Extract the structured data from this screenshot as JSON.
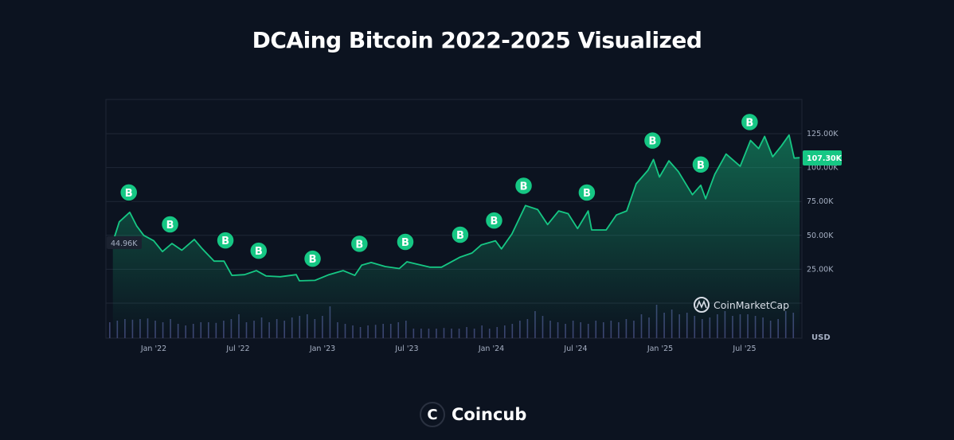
{
  "title": "DCAing Bitcoin 2022-2025 Visualized",
  "brand": {
    "logo_letter": "C",
    "name": "Coincub"
  },
  "watermark": "CoinMarketCap",
  "colors": {
    "background": "#0c1320",
    "line": "#16c784",
    "marker": "#16c784",
    "volume": "#3b4470",
    "grid": "#1f2736"
  },
  "chart_data": {
    "type": "area",
    "title": "DCAing Bitcoin 2022-2025 Visualized",
    "xlabel": "",
    "ylabel": "",
    "currency_label": "USD",
    "y_unit": "K",
    "ylim": [
      0,
      150
    ],
    "yticks": [
      25,
      50,
      75,
      100,
      125
    ],
    "ytick_labels": [
      "25.00K",
      "50.00K",
      "75.00K",
      "100.00K",
      "125.00K"
    ],
    "xticks": [
      "2022-01-01",
      "2022-07-01",
      "2023-01-01",
      "2023-07-01",
      "2024-01-01",
      "2024-07-01",
      "2025-01-01",
      "2025-07-01"
    ],
    "xtick_labels": [
      "Jan '22",
      "Jul '22",
      "Jan '23",
      "Jul '23",
      "Jan '24",
      "Jul '24",
      "Jan '25",
      "Jul '25"
    ],
    "grid": true,
    "start_label": "44.96K",
    "current_price_label": "107.30K",
    "current_price": 107.3,
    "series": [
      {
        "points": [
          [
            "2021-10-04",
            45
          ],
          [
            "2021-10-18",
            60
          ],
          [
            "2021-11-10",
            67
          ],
          [
            "2021-11-25",
            57
          ],
          [
            "2021-12-10",
            50
          ],
          [
            "2022-01-01",
            46
          ],
          [
            "2022-01-20",
            38
          ],
          [
            "2022-02-10",
            44
          ],
          [
            "2022-03-01",
            39
          ],
          [
            "2022-03-28",
            47
          ],
          [
            "2022-04-15",
            40
          ],
          [
            "2022-05-10",
            31
          ],
          [
            "2022-06-01",
            31
          ],
          [
            "2022-06-18",
            20.5
          ],
          [
            "2022-07-15",
            21
          ],
          [
            "2022-08-10",
            24
          ],
          [
            "2022-09-01",
            20
          ],
          [
            "2022-10-01",
            19.5
          ],
          [
            "2022-11-05",
            21
          ],
          [
            "2022-11-12",
            16.5
          ],
          [
            "2022-12-15",
            16.8
          ],
          [
            "2023-01-15",
            21
          ],
          [
            "2023-02-15",
            24
          ],
          [
            "2023-03-10",
            20.5
          ],
          [
            "2023-03-25",
            28
          ],
          [
            "2023-04-15",
            30
          ],
          [
            "2023-05-15",
            27
          ],
          [
            "2023-06-15",
            25.5
          ],
          [
            "2023-07-01",
            30.5
          ],
          [
            "2023-08-20",
            26.5
          ],
          [
            "2023-09-15",
            26.5
          ],
          [
            "2023-10-25",
            34
          ],
          [
            "2023-11-20",
            37
          ],
          [
            "2023-12-10",
            43
          ],
          [
            "2024-01-10",
            46
          ],
          [
            "2024-01-23",
            40
          ],
          [
            "2024-02-15",
            51
          ],
          [
            "2024-03-14",
            72
          ],
          [
            "2024-04-10",
            69
          ],
          [
            "2024-05-01",
            58
          ],
          [
            "2024-05-25",
            68
          ],
          [
            "2024-06-15",
            66
          ],
          [
            "2024-07-05",
            55
          ],
          [
            "2024-07-28",
            68
          ],
          [
            "2024-08-05",
            54
          ],
          [
            "2024-09-06",
            54
          ],
          [
            "2024-09-28",
            65
          ],
          [
            "2024-10-20",
            68
          ],
          [
            "2024-11-10",
            88
          ],
          [
            "2024-12-05",
            98
          ],
          [
            "2024-12-17",
            106
          ],
          [
            "2024-12-30",
            93
          ],
          [
            "2025-01-20",
            105
          ],
          [
            "2025-02-10",
            97
          ],
          [
            "2025-03-10",
            80
          ],
          [
            "2025-03-28",
            87
          ],
          [
            "2025-04-08",
            77
          ],
          [
            "2025-04-28",
            95
          ],
          [
            "2025-05-22",
            110
          ],
          [
            "2025-06-22",
            101
          ],
          [
            "2025-07-14",
            120
          ],
          [
            "2025-08-01",
            114
          ],
          [
            "2025-08-14",
            123
          ],
          [
            "2025-09-01",
            108
          ],
          [
            "2025-09-20",
            116
          ],
          [
            "2025-10-06",
            124
          ],
          [
            "2025-10-17",
            107
          ],
          [
            "2025-10-29",
            107.3
          ]
        ]
      }
    ],
    "buy_markers": {
      "label": "B",
      "dates": [
        "2021-11-08",
        "2022-02-06",
        "2022-06-04",
        "2022-08-15",
        "2022-12-10",
        "2023-03-20",
        "2023-06-28",
        "2023-10-25",
        "2024-01-07",
        "2024-03-10",
        "2024-07-25",
        "2024-12-15",
        "2025-03-28",
        "2025-07-12"
      ]
    },
    "volume_relative": [
      0.5,
      0.55,
      0.6,
      0.58,
      0.6,
      0.62,
      0.55,
      0.5,
      0.6,
      0.45,
      0.4,
      0.45,
      0.5,
      0.5,
      0.48,
      0.55,
      0.6,
      0.75,
      0.5,
      0.55,
      0.65,
      0.5,
      0.6,
      0.55,
      0.65,
      0.7,
      0.75,
      0.6,
      0.7,
      1.0,
      0.5,
      0.45,
      0.4,
      0.35,
      0.4,
      0.42,
      0.45,
      0.45,
      0.5,
      0.55,
      0.3,
      0.3,
      0.3,
      0.3,
      0.32,
      0.3,
      0.3,
      0.35,
      0.3,
      0.4,
      0.3,
      0.35,
      0.4,
      0.45,
      0.55,
      0.6,
      0.85,
      0.7,
      0.55,
      0.5,
      0.45,
      0.55,
      0.5,
      0.45,
      0.55,
      0.5,
      0.55,
      0.5,
      0.6,
      0.55,
      0.75,
      0.65,
      1.05,
      0.8,
      0.9,
      0.75,
      0.8,
      0.7,
      0.6,
      0.65,
      0.75,
      0.85,
      0.7,
      0.75,
      0.75,
      0.7,
      0.65,
      0.55,
      0.6,
      0.85,
      0.8
    ]
  }
}
